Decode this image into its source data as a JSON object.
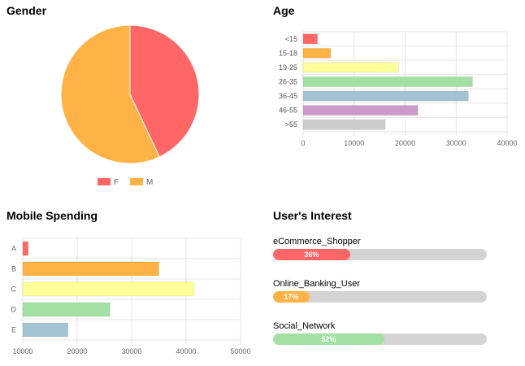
{
  "gender": {
    "title": "Gender",
    "chart_data": {
      "type": "pie",
      "categories": [
        "F",
        "M"
      ],
      "values": [
        43,
        57
      ],
      "colors": [
        "#ff6666",
        "#ffb347"
      ],
      "legend_position": "bottom"
    }
  },
  "age": {
    "title": "Age",
    "chart_data": {
      "type": "bar",
      "orientation": "horizontal",
      "categories": [
        "<15",
        "15-18",
        "19-25",
        "26-35",
        "36-45",
        "46-55",
        ">55"
      ],
      "values": [
        2800,
        5400,
        18700,
        33200,
        32400,
        22500,
        16100
      ],
      "colors": [
        "#ff6666",
        "#ffb347",
        "#ffff99",
        "#a3e0a3",
        "#a2c3d1",
        "#cc99cc",
        "#cccccc"
      ],
      "xlim": [
        0,
        40000
      ],
      "xticks": [
        "0",
        "10000",
        "20000",
        "30000",
        "40000"
      ],
      "grid": true
    }
  },
  "spending": {
    "title": "Mobile Spending",
    "chart_data": {
      "type": "bar",
      "orientation": "horizontal",
      "categories": [
        "A",
        "B",
        "C",
        "D",
        "E"
      ],
      "values": [
        11000,
        35000,
        41500,
        26000,
        18300
      ],
      "colors": [
        "#ff6666",
        "#ffb347",
        "#ffff99",
        "#a3e0a3",
        "#a2c3d1"
      ],
      "xlim": [
        10000,
        50000
      ],
      "xticks": [
        "10000",
        "20000",
        "30000",
        "40000",
        "50000"
      ],
      "grid": true
    }
  },
  "interest": {
    "title": "User's Interest",
    "items": [
      {
        "label": "eCommerce_Shopper",
        "percent": 36,
        "percent_text": "36%",
        "color": "#ff6666"
      },
      {
        "label": "Online_Banking_User",
        "percent": 17,
        "percent_text": "17%",
        "color": "#ffb347"
      },
      {
        "label": "Social_Network",
        "percent": 52,
        "percent_text": "52%",
        "color": "#a3e0a3"
      }
    ]
  }
}
